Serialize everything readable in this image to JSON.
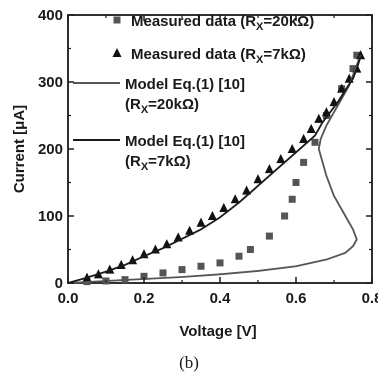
{
  "caption": "(b)",
  "chart_data": {
    "type": "scatter",
    "xlabel": "Voltage [V]",
    "ylabel": "Current [μA]",
    "xlim": [
      0.0,
      0.8
    ],
    "ylim": [
      0,
      400
    ],
    "xticks": [
      "0.0",
      "0.2",
      "0.4",
      "0.6",
      "0.8"
    ],
    "yticks": [
      "0",
      "100",
      "200",
      "300",
      "400"
    ],
    "grid": false,
    "legend_position": "top-left",
    "series": [
      {
        "name": "Measured data (R_X=20kΩ)",
        "legend": [
          "Measured data (R",
          "X",
          "=20kΩ)"
        ],
        "marker": "square",
        "x": [
          0.05,
          0.1,
          0.15,
          0.2,
          0.25,
          0.3,
          0.35,
          0.4,
          0.45,
          0.48,
          0.53,
          0.57,
          0.59,
          0.6,
          0.62,
          0.65,
          0.68,
          0.72,
          0.75,
          0.76
        ],
        "y": [
          2,
          3,
          5,
          10,
          15,
          20,
          25,
          30,
          40,
          50,
          70,
          100,
          125,
          150,
          180,
          210,
          250,
          290,
          320,
          340
        ]
      },
      {
        "name": "Measured data (R_X=7kΩ)",
        "legend": [
          "Measured data (R",
          "X",
          "=7kΩ)"
        ],
        "marker": "triangle",
        "x": [
          0.05,
          0.08,
          0.11,
          0.14,
          0.17,
          0.2,
          0.23,
          0.26,
          0.29,
          0.32,
          0.35,
          0.38,
          0.41,
          0.44,
          0.47,
          0.5,
          0.53,
          0.56,
          0.59,
          0.62,
          0.64,
          0.66,
          0.68,
          0.7,
          0.72,
          0.74,
          0.76,
          0.77
        ],
        "y": [
          8,
          13,
          20,
          27,
          34,
          43,
          50,
          58,
          68,
          78,
          90,
          100,
          112,
          125,
          138,
          155,
          170,
          185,
          200,
          215,
          230,
          245,
          255,
          270,
          290,
          305,
          320,
          340
        ]
      },
      {
        "name": "Model Eq.(1) [10] (R_X=20kΩ)",
        "legend": [
          "Model Eq.(1) [10]",
          "(R",
          "X",
          "=20kΩ)"
        ],
        "marker": "line",
        "color": "#555555",
        "x": [
          0.0,
          0.1,
          0.2,
          0.3,
          0.4,
          0.5,
          0.6,
          0.68,
          0.73,
          0.75,
          0.76,
          0.75,
          0.73,
          0.7,
          0.68,
          0.67,
          0.66,
          0.665,
          0.68,
          0.7,
          0.72,
          0.74,
          0.75,
          0.76,
          0.77
        ],
        "y": [
          0,
          3,
          6,
          9,
          13,
          18,
          25,
          35,
          45,
          55,
          65,
          80,
          100,
          130,
          160,
          180,
          200,
          215,
          235,
          255,
          275,
          295,
          310,
          325,
          340
        ]
      },
      {
        "name": "Model Eq.(1) [10] (R_X=7kΩ)",
        "legend": [
          "Model Eq.(1) [10]",
          "(R",
          "X",
          "=7kΩ)"
        ],
        "marker": "line",
        "color": "#1a1a1a",
        "x": [
          0.0,
          0.05,
          0.1,
          0.15,
          0.2,
          0.25,
          0.3,
          0.35,
          0.4,
          0.45,
          0.5,
          0.55,
          0.6,
          0.63,
          0.65,
          0.66,
          0.67,
          0.69,
          0.71,
          0.73,
          0.75,
          0.76,
          0.77
        ],
        "y": [
          0,
          8,
          17,
          27,
          40,
          52,
          66,
          80,
          98,
          120,
          145,
          170,
          195,
          210,
          220,
          230,
          240,
          255,
          270,
          288,
          305,
          320,
          338
        ]
      }
    ]
  }
}
